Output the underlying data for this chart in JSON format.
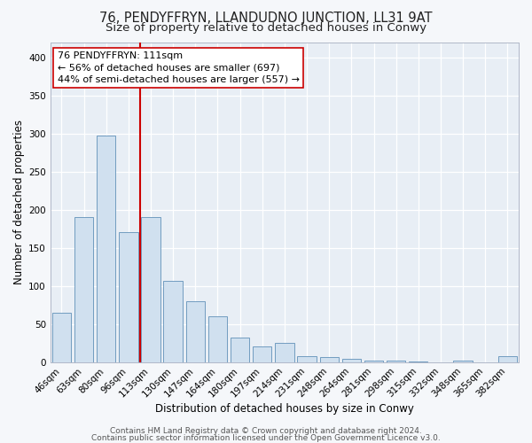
{
  "title": "76, PENDYFFRYN, LLANDUDNO JUNCTION, LL31 9AT",
  "subtitle": "Size of property relative to detached houses in Conwy",
  "xlabel": "Distribution of detached houses by size in Conwy",
  "ylabel": "Number of detached properties",
  "bar_labels": [
    "46sqm",
    "63sqm",
    "80sqm",
    "96sqm",
    "113sqm",
    "130sqm",
    "147sqm",
    "164sqm",
    "180sqm",
    "197sqm",
    "214sqm",
    "231sqm",
    "248sqm",
    "264sqm",
    "281sqm",
    "298sqm",
    "315sqm",
    "332sqm",
    "348sqm",
    "365sqm",
    "382sqm"
  ],
  "bar_values": [
    65,
    190,
    297,
    170,
    190,
    106,
    80,
    60,
    32,
    20,
    25,
    8,
    6,
    4,
    2,
    2,
    1,
    0,
    2,
    0,
    8
  ],
  "bar_color": "#d0e0ef",
  "bar_edge_color": "#6090b8",
  "vline_color": "#cc0000",
  "annotation_text": "76 PENDYFFRYN: 111sqm\n← 56% of detached houses are smaller (697)\n44% of semi-detached houses are larger (557) →",
  "annotation_box_facecolor": "#ffffff",
  "annotation_box_edge": "#cc0000",
  "ylim": [
    0,
    420
  ],
  "yticks": [
    0,
    50,
    100,
    150,
    200,
    250,
    300,
    350,
    400
  ],
  "footer1": "Contains HM Land Registry data © Crown copyright and database right 2024.",
  "footer2": "Contains public sector information licensed under the Open Government Licence v3.0.",
  "fig_facecolor": "#f5f7fa",
  "plot_bg_color": "#e8eef5",
  "title_fontsize": 10.5,
  "subtitle_fontsize": 9.5,
  "tick_fontsize": 7.5,
  "xlabel_fontsize": 8.5,
  "ylabel_fontsize": 8.5,
  "footer_fontsize": 6.5,
  "ann_fontsize": 8
}
